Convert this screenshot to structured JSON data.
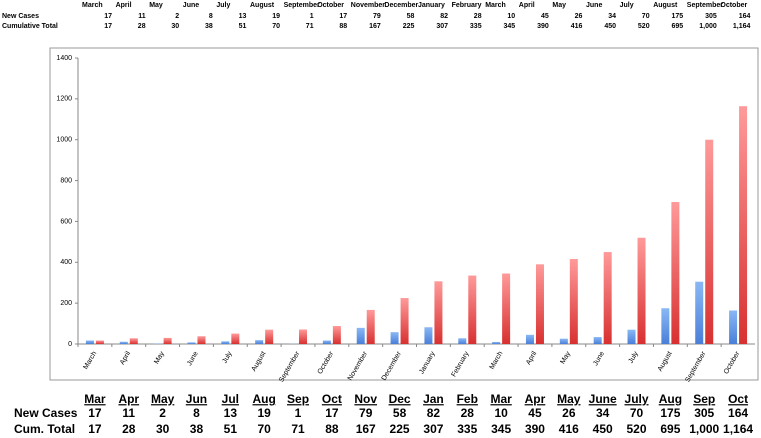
{
  "chart_data": {
    "type": "bar",
    "categories": [
      "March",
      "April",
      "May",
      "June",
      "July",
      "August",
      "September",
      "October",
      "November",
      "December",
      "January",
      "February",
      "March",
      "April",
      "May",
      "June",
      "July",
      "August",
      "September",
      "October"
    ],
    "series": [
      {
        "name": "New Cases",
        "color": "#6f9fe8",
        "values": [
          17,
          11,
          2,
          8,
          13,
          19,
          1,
          17,
          79,
          58,
          82,
          28,
          10,
          45,
          26,
          34,
          70,
          175,
          305,
          164
        ]
      },
      {
        "name": "Cumulative Total",
        "color": "#e85050",
        "values": [
          17,
          28,
          30,
          38,
          51,
          70,
          71,
          88,
          167,
          225,
          307,
          335,
          345,
          390,
          416,
          450,
          520,
          695,
          1000,
          1164
        ],
        "value_labels": [
          "17",
          "28",
          "30",
          "38",
          "51",
          "70",
          "71",
          "88",
          "167",
          "225",
          "307",
          "335",
          "345",
          "390",
          "416",
          "450",
          "520",
          "695",
          "1,000",
          "1,164"
        ]
      }
    ],
    "ylim": [
      0,
      1400
    ],
    "yticks": [
      0,
      200,
      400,
      600,
      800,
      1000,
      1200,
      1400
    ]
  },
  "bottom_table": {
    "columns": [
      "Mar",
      "Apr",
      "May",
      "Jun",
      "Jul",
      "Aug",
      "Sep",
      "Oct",
      "Nov",
      "Dec",
      "Jan",
      "Feb",
      "Mar",
      "Apr",
      "May",
      "June",
      "July",
      "Aug",
      "Sep",
      "Oct"
    ],
    "row_labels": [
      "New Cases",
      "Cum. Total"
    ]
  }
}
